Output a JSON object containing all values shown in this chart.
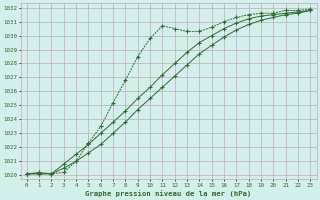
{
  "title": "Graphe pression niveau de la mer (hPa)",
  "bg_color": "#d4eeec",
  "grid_color": "#c0aabb",
  "line_color": "#2d6e2d",
  "xlim": [
    -0.5,
    23.5
  ],
  "ylim": [
    1019.7,
    1032.3
  ],
  "xticks": [
    0,
    1,
    2,
    3,
    4,
    5,
    6,
    7,
    8,
    9,
    10,
    11,
    12,
    13,
    14,
    15,
    16,
    17,
    18,
    19,
    20,
    21,
    22,
    23
  ],
  "yticks": [
    1020,
    1021,
    1022,
    1023,
    1024,
    1025,
    1026,
    1027,
    1028,
    1029,
    1030,
    1031,
    1032
  ],
  "series1_x": [
    0,
    1,
    2,
    3,
    4,
    5,
    6,
    7,
    8,
    9,
    10,
    11,
    12,
    13,
    14,
    15,
    16,
    17,
    18,
    19,
    20,
    21,
    22,
    23
  ],
  "series1_y": [
    1020.1,
    1020.2,
    1020.1,
    1020.2,
    1021.0,
    1022.3,
    1023.5,
    1025.2,
    1026.8,
    1028.5,
    1029.8,
    1030.7,
    1030.5,
    1030.3,
    1030.3,
    1030.6,
    1031.0,
    1031.3,
    1031.5,
    1031.6,
    1031.6,
    1031.8,
    1031.8,
    1031.9
  ],
  "series2_x": [
    0,
    1,
    2,
    3,
    4,
    5,
    6,
    7,
    8,
    9,
    10,
    11,
    12,
    13,
    14,
    15,
    16,
    17,
    18,
    19,
    20,
    21,
    22,
    23
  ],
  "series2_y": [
    1020.1,
    1020.1,
    1020.1,
    1020.8,
    1021.5,
    1022.2,
    1023.0,
    1023.8,
    1024.6,
    1025.5,
    1026.3,
    1027.2,
    1028.0,
    1028.8,
    1029.5,
    1030.0,
    1030.5,
    1030.9,
    1031.2,
    1031.4,
    1031.5,
    1031.6,
    1031.7,
    1031.8
  ],
  "series3_x": [
    0,
    1,
    2,
    3,
    4,
    5,
    6,
    7,
    8,
    9,
    10,
    11,
    12,
    13,
    14,
    15,
    16,
    17,
    18,
    19,
    20,
    21,
    22,
    23
  ],
  "series3_y": [
    1020.1,
    1020.1,
    1020.1,
    1020.5,
    1021.0,
    1021.6,
    1022.2,
    1023.0,
    1023.8,
    1024.7,
    1025.5,
    1026.3,
    1027.1,
    1027.9,
    1028.7,
    1029.3,
    1029.9,
    1030.4,
    1030.8,
    1031.1,
    1031.3,
    1031.5,
    1031.6,
    1031.8
  ]
}
